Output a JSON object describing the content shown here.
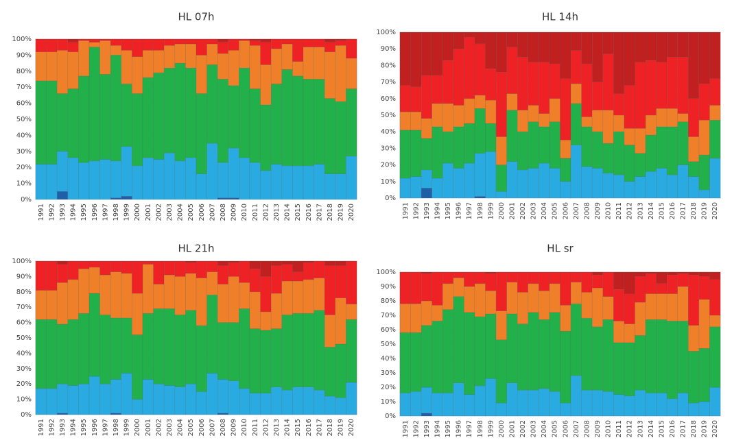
{
  "chart_data": [
    {
      "type": "bar",
      "stacked": true,
      "title": "HL 07h",
      "categories": [
        "1991",
        "1992",
        "1993",
        "1994",
        "1995",
        "1996",
        "1997",
        "1998",
        "1999",
        "2000",
        "2001",
        "2002",
        "2003",
        "2004",
        "2005",
        "2006",
        "2007",
        "2008",
        "2009",
        "2010",
        "2011",
        "2012",
        "2013",
        "2014",
        "2015",
        "2016",
        "2017",
        "2018",
        "2019",
        "2020"
      ],
      "series": [
        {
          "color": "#1f5fa8",
          "values": [
            0,
            0,
            5,
            0,
            0,
            0,
            0,
            1,
            2,
            0,
            0,
            0,
            0,
            0,
            0,
            0,
            0,
            1,
            1,
            0,
            0,
            0,
            0,
            0,
            0,
            0,
            0,
            0,
            0,
            0
          ]
        },
        {
          "color": "#29abe2",
          "values": [
            22,
            22,
            25,
            26,
            23,
            24,
            25,
            23,
            31,
            21,
            26,
            25,
            29,
            24,
            26,
            16,
            35,
            22,
            31,
            26,
            23,
            18,
            22,
            21,
            21,
            21,
            22,
            16,
            16,
            27
          ]
        },
        {
          "color": "#22b04b",
          "values": [
            52,
            52,
            36,
            43,
            54,
            71,
            53,
            66,
            39,
            45,
            50,
            54,
            53,
            61,
            56,
            50,
            49,
            52,
            39,
            56,
            46,
            41,
            50,
            60,
            56,
            54,
            53,
            47,
            45,
            42
          ]
        },
        {
          "color": "#f07f2a",
          "values": [
            18,
            18,
            27,
            23,
            22,
            3,
            21,
            6,
            21,
            23,
            17,
            14,
            14,
            12,
            15,
            24,
            13,
            16,
            22,
            17,
            27,
            25,
            22,
            16,
            9,
            20,
            20,
            29,
            35,
            19
          ]
        },
        {
          "color": "#ee2224",
          "values": [
            8,
            8,
            7,
            6,
            1,
            2,
            1,
            4,
            7,
            11,
            7,
            7,
            4,
            3,
            3,
            10,
            3,
            7,
            7,
            1,
            3,
            14,
            6,
            3,
            14,
            5,
            5,
            6,
            3,
            12
          ]
        },
        {
          "color": "#c0201f",
          "values": [
            0,
            0,
            0,
            2,
            0,
            0,
            0,
            0,
            0,
            0,
            0,
            0,
            0,
            0,
            0,
            0,
            0,
            2,
            0,
            0,
            1,
            2,
            0,
            0,
            0,
            0,
            0,
            2,
            1,
            0
          ]
        }
      ],
      "ylim": [
        0,
        100
      ],
      "yticks": [
        {
          "value": 0,
          "label": "0%"
        },
        {
          "value": 10,
          "label": "10%"
        },
        {
          "value": 20,
          "label": "20%"
        },
        {
          "value": 30,
          "label": "30%"
        },
        {
          "value": 40,
          "label": "40%"
        },
        {
          "value": 50,
          "label": "50%"
        },
        {
          "value": 60,
          "label": "60%"
        },
        {
          "value": 70,
          "label": "70%"
        },
        {
          "value": 80,
          "label": "80%"
        },
        {
          "value": 90,
          "label": "90%"
        },
        {
          "value": 100,
          "label": "100%"
        }
      ],
      "grid": true
    },
    {
      "type": "bar",
      "stacked": true,
      "title": "HL 14h",
      "categories": [
        "1991",
        "1992",
        "1993",
        "1994",
        "1995",
        "1996",
        "1997",
        "1998",
        "1999",
        "2000",
        "2001",
        "2002",
        "2003",
        "2004",
        "2005",
        "2006",
        "2007",
        "2008",
        "2009",
        "2010",
        "2011",
        "2012",
        "2013",
        "2014",
        "2015",
        "2016",
        "2017",
        "2018",
        "2019",
        "2020"
      ],
      "series": [
        {
          "color": "#1f5fa8",
          "values": [
            0,
            0,
            6,
            0,
            0,
            0,
            0,
            1,
            0,
            0,
            0,
            0,
            0,
            0,
            0,
            0,
            0,
            0,
            0,
            0,
            0,
            0,
            0,
            0,
            0,
            0,
            0,
            0,
            0,
            0
          ]
        },
        {
          "color": "#29abe2",
          "values": [
            12,
            13,
            11,
            12,
            21,
            18,
            21,
            26,
            28,
            4,
            22,
            17,
            18,
            21,
            18,
            10,
            32,
            19,
            18,
            15,
            14,
            10,
            13,
            16,
            18,
            14,
            20,
            13,
            5,
            24
          ]
        },
        {
          "color": "#22b04b",
          "values": [
            29,
            28,
            19,
            31,
            19,
            25,
            24,
            27,
            17,
            16,
            31,
            23,
            28,
            22,
            28,
            14,
            25,
            24,
            22,
            18,
            26,
            22,
            14,
            22,
            25,
            29,
            26,
            9,
            21,
            23
          ]
        },
        {
          "color": "#f07f2a",
          "values": [
            11,
            11,
            12,
            14,
            17,
            13,
            15,
            8,
            14,
            17,
            10,
            13,
            10,
            8,
            14,
            11,
            12,
            6,
            13,
            20,
            10,
            10,
            15,
            12,
            11,
            11,
            5,
            15,
            21,
            9
          ]
        },
        {
          "color": "#ee2224",
          "values": [
            16,
            15,
            26,
            17,
            26,
            34,
            37,
            31,
            19,
            39,
            28,
            32,
            26,
            31,
            21,
            37,
            20,
            32,
            17,
            34,
            13,
            26,
            40,
            33,
            28,
            31,
            34,
            23,
            22,
            16
          ]
        },
        {
          "color": "#c0201f",
          "values": [
            32,
            33,
            26,
            26,
            17,
            10,
            3,
            7,
            22,
            24,
            9,
            15,
            18,
            18,
            19,
            28,
            11,
            19,
            30,
            13,
            37,
            32,
            18,
            17,
            18,
            15,
            15,
            40,
            31,
            28
          ]
        }
      ],
      "ylim": [
        0,
        100
      ],
      "yticks": [
        {
          "value": 0,
          "label": "0%"
        },
        {
          "value": 10,
          "label": "10%"
        },
        {
          "value": 20,
          "label": "20%"
        },
        {
          "value": 30,
          "label": "30%"
        },
        {
          "value": 40,
          "label": "40%"
        },
        {
          "value": 50,
          "label": "50%"
        },
        {
          "value": 60,
          "label": "60%"
        },
        {
          "value": 70,
          "label": "70%"
        },
        {
          "value": 80,
          "label": "80%"
        },
        {
          "value": 90,
          "label": "90%"
        },
        {
          "value": 100,
          "label": "100%"
        }
      ],
      "grid": true
    },
    {
      "type": "bar",
      "stacked": true,
      "title": "HL 21h",
      "categories": [
        "1991",
        "1992",
        "1993",
        "1994",
        "1995",
        "1996",
        "1997",
        "1998",
        "1999",
        "2000",
        "2001",
        "2002",
        "2003",
        "2004",
        "2005",
        "2006",
        "2007",
        "2008",
        "2009",
        "2010",
        "2011",
        "2012",
        "2013",
        "2014",
        "2015",
        "2016",
        "2017",
        "2018",
        "2019",
        "2020"
      ],
      "series": [
        {
          "color": "#1f5fa8",
          "values": [
            0,
            0,
            1,
            0,
            0,
            0,
            0,
            1,
            0,
            0,
            0,
            0,
            0,
            0,
            0,
            0,
            0,
            1,
            0,
            0,
            0,
            0,
            0,
            0,
            0,
            0,
            0,
            0,
            0,
            0
          ]
        },
        {
          "color": "#29abe2",
          "values": [
            17,
            17,
            19,
            19,
            20,
            25,
            20,
            22,
            27,
            10,
            23,
            20,
            19,
            18,
            20,
            15,
            27,
            22,
            22,
            17,
            14,
            14,
            18,
            16,
            18,
            18,
            16,
            12,
            11,
            21
          ]
        },
        {
          "color": "#22b04b",
          "values": [
            45,
            45,
            39,
            43,
            46,
            54,
            45,
            40,
            36,
            42,
            43,
            49,
            50,
            47,
            48,
            43,
            51,
            37,
            38,
            52,
            42,
            41,
            38,
            49,
            48,
            48,
            52,
            32,
            35,
            41
          ]
        },
        {
          "color": "#f07f2a",
          "values": [
            19,
            19,
            27,
            26,
            29,
            17,
            26,
            30,
            29,
            27,
            32,
            16,
            22,
            25,
            24,
            31,
            15,
            25,
            30,
            17,
            24,
            12,
            23,
            22,
            21,
            22,
            21,
            21,
            30,
            10
          ]
        },
        {
          "color": "#ee2224",
          "values": [
            19,
            19,
            12,
            12,
            5,
            4,
            9,
            7,
            8,
            21,
            2,
            15,
            9,
            10,
            7,
            11,
            7,
            12,
            9,
            14,
            15,
            23,
            18,
            11,
            6,
            11,
            11,
            32,
            21,
            28
          ]
        },
        {
          "color": "#c0201f",
          "values": [
            0,
            0,
            2,
            0,
            0,
            0,
            0,
            0,
            0,
            0,
            0,
            0,
            0,
            0,
            1,
            0,
            0,
            3,
            1,
            0,
            5,
            10,
            3,
            2,
            7,
            1,
            0,
            3,
            3,
            0
          ]
        }
      ],
      "ylim": [
        0,
        100
      ],
      "yticks": [
        {
          "value": 0,
          "label": "0%"
        },
        {
          "value": 10,
          "label": "10%"
        },
        {
          "value": 20,
          "label": "20%"
        },
        {
          "value": 30,
          "label": "30%"
        },
        {
          "value": 40,
          "label": "40%"
        },
        {
          "value": 50,
          "label": "50%"
        },
        {
          "value": 60,
          "label": "60%"
        },
        {
          "value": 70,
          "label": "70%"
        },
        {
          "value": 80,
          "label": "80%"
        },
        {
          "value": 90,
          "label": "90%"
        },
        {
          "value": 100,
          "label": "100%"
        }
      ],
      "grid": true
    },
    {
      "type": "bar",
      "stacked": true,
      "title": "HL sr",
      "categories": [
        "1991",
        "1992",
        "1993",
        "1994",
        "1995",
        "1996",
        "1997",
        "1998",
        "1999",
        "2000",
        "2001",
        "2002",
        "2003",
        "2004",
        "2005",
        "2006",
        "2007",
        "2008",
        "2009",
        "2010",
        "2011",
        "2012",
        "2013",
        "2014",
        "2015",
        "2016",
        "2017",
        "2018",
        "2019",
        "2020"
      ],
      "series": [
        {
          "color": "#1f5fa8",
          "values": [
            0,
            0,
            2,
            0,
            0,
            0,
            0,
            0,
            0,
            0,
            0,
            0,
            0,
            0,
            0,
            0,
            0,
            0,
            0,
            0,
            0,
            0,
            0,
            0,
            0,
            0,
            0,
            0,
            0,
            0
          ]
        },
        {
          "color": "#29abe2",
          "values": [
            16,
            17,
            18,
            16,
            16,
            23,
            15,
            21,
            26,
            9,
            23,
            18,
            18,
            19,
            17,
            9,
            28,
            18,
            18,
            17,
            15,
            14,
            18,
            16,
            16,
            12,
            16,
            9,
            10,
            20
          ]
        },
        {
          "color": "#22b04b",
          "values": [
            42,
            41,
            43,
            50,
            58,
            60,
            57,
            48,
            45,
            44,
            48,
            46,
            54,
            48,
            55,
            50,
            50,
            50,
            44,
            50,
            36,
            37,
            38,
            51,
            51,
            54,
            50,
            36,
            37,
            42
          ]
        },
        {
          "color": "#f07f2a",
          "values": [
            20,
            20,
            17,
            11,
            18,
            13,
            18,
            23,
            16,
            20,
            22,
            22,
            20,
            20,
            20,
            18,
            15,
            18,
            27,
            16,
            15,
            13,
            23,
            18,
            18,
            19,
            24,
            18,
            34,
            8
          ]
        },
        {
          "color": "#ee2224",
          "values": [
            22,
            22,
            19,
            23,
            8,
            4,
            10,
            8,
            12,
            27,
            7,
            14,
            8,
            13,
            8,
            23,
            7,
            14,
            9,
            17,
            22,
            21,
            18,
            14,
            7,
            13,
            9,
            35,
            16,
            25
          ]
        },
        {
          "color": "#c0201f",
          "values": [
            0,
            0,
            1,
            0,
            0,
            0,
            0,
            0,
            1,
            0,
            0,
            0,
            0,
            0,
            0,
            0,
            0,
            0,
            2,
            0,
            12,
            15,
            3,
            1,
            8,
            2,
            1,
            2,
            3,
            5
          ]
        }
      ],
      "ylim": [
        0,
        100
      ],
      "yticks": [
        {
          "value": 0,
          "label": "0%"
        },
        {
          "value": 10,
          "label": "10%"
        },
        {
          "value": 20,
          "label": "20%"
        },
        {
          "value": 30,
          "label": "30%"
        },
        {
          "value": 40,
          "label": "40%"
        },
        {
          "value": 50,
          "label": "50%"
        },
        {
          "value": 60,
          "label": "60%"
        },
        {
          "value": 70,
          "label": "70%"
        },
        {
          "value": 80,
          "label": "80%"
        },
        {
          "value": 90,
          "label": "90%"
        },
        {
          "value": 100,
          "label": "100%"
        }
      ],
      "grid": true
    }
  ]
}
